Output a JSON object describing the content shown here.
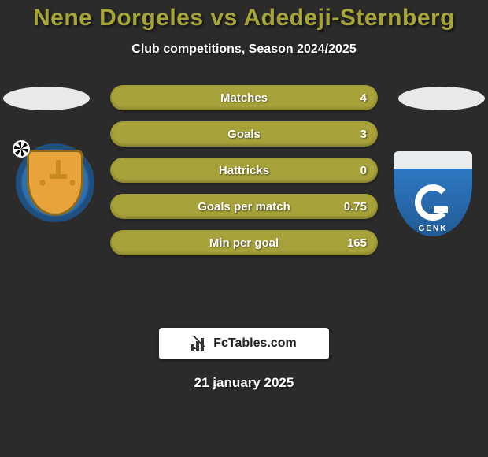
{
  "background_color": "#2b2b2b",
  "title_color": "#a8a538",
  "title": "Nene Dorgeles vs Adedeji-Sternberg",
  "subtitle": "Club competitions, Season 2024/2025",
  "brand": "FcTables.com",
  "date": "21 january 2025",
  "crest_right_label": "GENK",
  "bar_color": "#a7a23a",
  "stats": [
    {
      "label": "Matches",
      "value": "4"
    },
    {
      "label": "Goals",
      "value": "3"
    },
    {
      "label": "Hattricks",
      "value": "0"
    },
    {
      "label": "Goals per match",
      "value": "0.75"
    },
    {
      "label": "Min per goal",
      "value": "165"
    }
  ]
}
